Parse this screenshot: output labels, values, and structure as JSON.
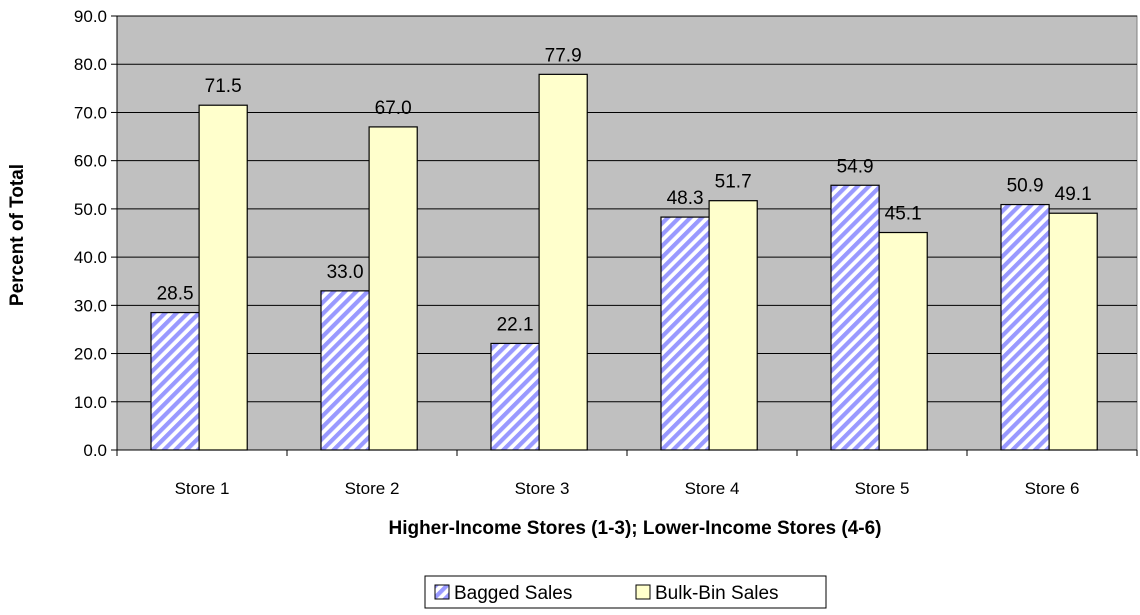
{
  "chart_data": {
    "type": "bar",
    "categories": [
      "Store 1",
      "Store 2",
      "Store 3",
      "Store 4",
      "Store 5",
      "Store 6"
    ],
    "series": [
      {
        "name": "Bagged Sales",
        "values": [
          28.5,
          33.0,
          22.1,
          48.3,
          54.9,
          50.9
        ],
        "labels": [
          "28.5",
          "33.0",
          "22.1",
          "48.3",
          "54.9",
          "50.9"
        ],
        "color": "#9999ff",
        "pattern": "diagonal-stripes"
      },
      {
        "name": "Bulk-Bin Sales",
        "values": [
          71.5,
          67.0,
          77.9,
          51.7,
          45.1,
          49.1
        ],
        "labels": [
          "71.5",
          "67.0",
          "77.9",
          "51.7",
          "45.1",
          "49.1"
        ],
        "color": "#ffffcc",
        "pattern": "solid"
      }
    ],
    "y_ticks": [
      "0.0",
      "10.0",
      "20.0",
      "30.0",
      "40.0",
      "50.0",
      "60.0",
      "70.0",
      "80.0",
      "90.0"
    ],
    "ylim": [
      0,
      90
    ],
    "ylabel": "Percent of Total",
    "xlabel": "Higher-Income Stores (1-3); Lower-Income Stores (4-6)",
    "plot_background": "#c0c0c0",
    "grid": true,
    "legend_position": "bottom"
  }
}
